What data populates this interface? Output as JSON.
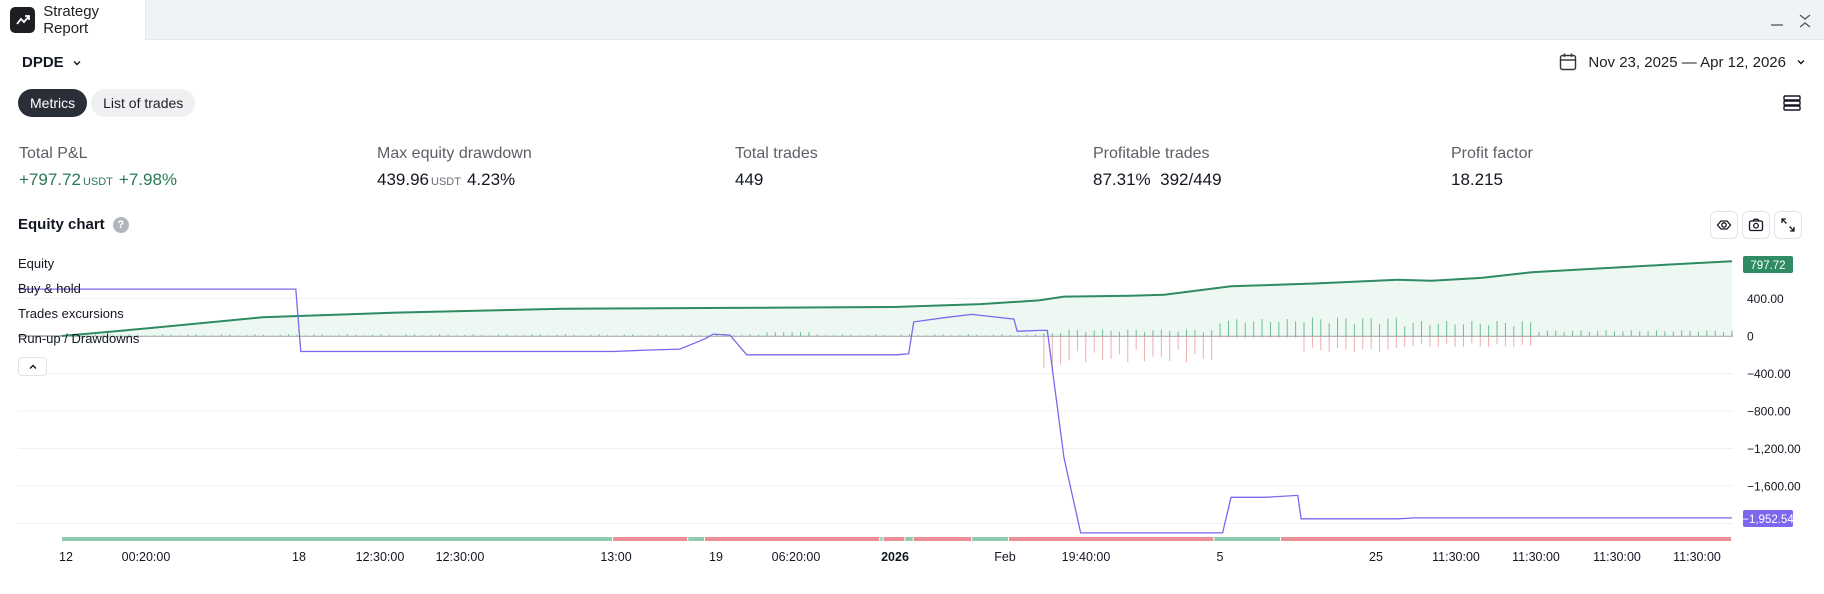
{
  "window": {
    "tab_title": "Strategy Report"
  },
  "header": {
    "symbol": "DPDE",
    "date_range": "Nov 23, 2025 — Apr 12, 2026"
  },
  "tabs": [
    {
      "label": "Metrics",
      "active": true
    },
    {
      "label": "List of trades",
      "active": false
    }
  ],
  "metrics": {
    "total_pnl": {
      "label": "Total P&L",
      "value": "+797.72",
      "unit": "USDT",
      "pct": "+7.98%"
    },
    "max_drawdown": {
      "label": "Max equity drawdown",
      "value": "439.96",
      "unit": "USDT",
      "pct": "4.23%"
    },
    "total_trades": {
      "label": "Total trades",
      "value": "449"
    },
    "profitable_trades": {
      "label": "Profitable trades",
      "value": "87.31%",
      "extra": "392/449"
    },
    "profit_factor": {
      "label": "Profit factor",
      "value": "18.215"
    }
  },
  "equity_chart": {
    "title": "Equity chart",
    "help_icon": "question-icon",
    "tool_icons": [
      "eye-icon",
      "camera-icon",
      "expand-icon"
    ],
    "legend": [
      "Equity",
      "Buy & hold",
      "Trades excursions",
      "Run-up / Drawdowns"
    ],
    "collapse_icon": "chevron-up-icon"
  },
  "colors": {
    "equity": "#2e8b62",
    "buy_hold": "#7b68ee",
    "runup": "#3fa67a",
    "drawdown": "#e58a8a",
    "profit_strip": "#8fcbb0",
    "loss_strip": "#ec8f95"
  },
  "chart_data": {
    "type": "line",
    "y_ticks": [
      "400.00",
      "0",
      "−400.00",
      "−800.00",
      "−1,200.00",
      "−1,600.00"
    ],
    "ylim": [
      -2100,
      800
    ],
    "x_ticks": [
      "12",
      "00:20:00",
      "18",
      "12:30:00",
      "12:30:00",
      "13:00",
      "19",
      "06:20:00",
      "2026",
      "Feb",
      "19:40:00",
      "5",
      "25",
      "11:30:00",
      "11:30:00",
      "11:30:00",
      "11:30:00"
    ],
    "x_tick_bold": [
      false,
      false,
      false,
      false,
      false,
      false,
      false,
      false,
      true,
      false,
      false,
      false,
      false,
      false,
      false,
      false,
      false
    ],
    "series": [
      {
        "name": "Equity",
        "last_value_label": "797.72",
        "x": [
          0,
          0.05,
          0.12,
          0.2,
          0.3,
          0.4,
          0.5,
          0.55,
          0.585,
          0.6,
          0.64,
          0.66,
          0.7,
          0.75,
          0.8,
          0.82,
          0.85,
          0.88,
          0.92,
          0.96,
          1.0
        ],
        "y": [
          0,
          80,
          200,
          250,
          290,
          300,
          310,
          340,
          380,
          420,
          430,
          440,
          530,
          560,
          600,
          590,
          620,
          680,
          720,
          760,
          797.72
        ]
      },
      {
        "name": "Buy & hold",
        "last_value_label": "−1,952.54",
        "x": [
          0,
          0.14,
          0.143,
          0.33,
          0.35,
          0.37,
          0.385,
          0.39,
          0.4,
          0.41,
          0.5,
          0.507,
          0.51,
          0.53,
          0.545,
          0.55,
          0.57,
          0.572,
          0.585,
          0.59,
          0.6,
          0.61,
          0.695,
          0.7,
          0.72,
          0.74,
          0.742,
          0.8,
          0.81,
          1.0
        ],
        "y": [
          500,
          500,
          -165,
          -165,
          -150,
          -140,
          -30,
          20,
          10,
          -200,
          -200,
          -190,
          150,
          200,
          230,
          220,
          180,
          50,
          60,
          60,
          -1300,
          -2100,
          -2100,
          -1720,
          -1720,
          -1700,
          -1950,
          -1950,
          -1940,
          -1940
        ]
      },
      {
        "name": "Trades excursions",
        "segments": [
          {
            "from": 0,
            "to": 0.33,
            "result": "profit"
          },
          {
            "from": 0.33,
            "to": 0.375,
            "result": "loss"
          },
          {
            "from": 0.375,
            "to": 0.385,
            "result": "profit"
          },
          {
            "from": 0.385,
            "to": 0.49,
            "result": "loss"
          },
          {
            "from": 0.49,
            "to": 0.492,
            "result": "profit"
          },
          {
            "from": 0.492,
            "to": 0.505,
            "result": "loss"
          },
          {
            "from": 0.505,
            "to": 0.51,
            "result": "profit"
          },
          {
            "from": 0.51,
            "to": 0.545,
            "result": "loss"
          },
          {
            "from": 0.545,
            "to": 0.567,
            "result": "profit"
          },
          {
            "from": 0.567,
            "to": 0.69,
            "result": "loss"
          },
          {
            "from": 0.69,
            "to": 0.73,
            "result": "profit"
          },
          {
            "from": 0.73,
            "to": 1.0,
            "result": "loss"
          }
        ]
      }
    ]
  }
}
